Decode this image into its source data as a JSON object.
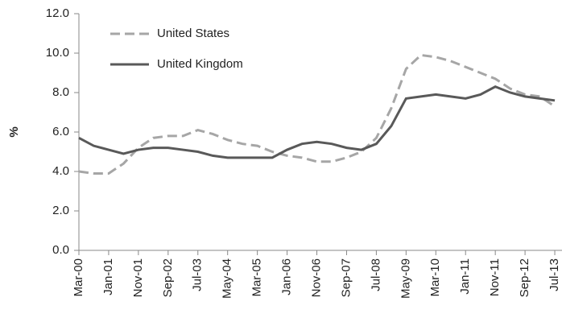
{
  "chart_data": {
    "type": "line",
    "y_label": "%",
    "categories": [
      "Mar-00",
      null,
      "Jan-01",
      null,
      "Nov-01",
      null,
      "Sep-02",
      null,
      "Jul-03",
      null,
      "May-04",
      null,
      "Mar-05",
      null,
      "Jan-06",
      null,
      "Nov-06",
      null,
      "Sep-07",
      null,
      "Jul-08",
      null,
      "May-09",
      null,
      "Mar-10",
      null,
      "Jan-11",
      null,
      "Nov-11",
      null,
      "Sep-12",
      null,
      "Jul-13"
    ],
    "series": [
      {
        "name": "United States",
        "color": "#a6a6a6",
        "dash": true,
        "values": [
          4.0,
          3.9,
          3.9,
          4.4,
          5.2,
          5.7,
          5.8,
          5.8,
          6.1,
          5.9,
          5.6,
          5.4,
          5.3,
          5.0,
          4.8,
          4.7,
          4.5,
          4.5,
          4.7,
          5.0,
          5.7,
          7.2,
          9.2,
          9.9,
          9.8,
          9.6,
          9.3,
          9.0,
          8.7,
          8.2,
          7.9,
          7.8,
          7.3
        ]
      },
      {
        "name": "United Kingdom",
        "color": "#595959",
        "dash": false,
        "values": [
          5.7,
          5.3,
          5.1,
          4.9,
          5.1,
          5.2,
          5.2,
          5.1,
          5.0,
          4.8,
          4.7,
          4.7,
          4.7,
          4.7,
          5.1,
          5.4,
          5.5,
          5.4,
          5.2,
          5.1,
          5.4,
          6.3,
          7.7,
          7.8,
          7.9,
          7.8,
          7.7,
          7.9,
          8.3,
          8.0,
          7.8,
          7.7,
          7.6
        ]
      }
    ],
    "ylim": [
      0,
      12
    ],
    "yticks": [
      {
        "value": 0,
        "label": "0.0"
      },
      {
        "value": 2,
        "label": "2.0"
      },
      {
        "value": 4,
        "label": "4.0"
      },
      {
        "value": 6,
        "label": "6.0"
      },
      {
        "value": 8,
        "label": "8.0"
      },
      {
        "value": 10,
        "label": "10.0"
      },
      {
        "value": 12,
        "label": "12.0"
      }
    ],
    "grid": false
  }
}
